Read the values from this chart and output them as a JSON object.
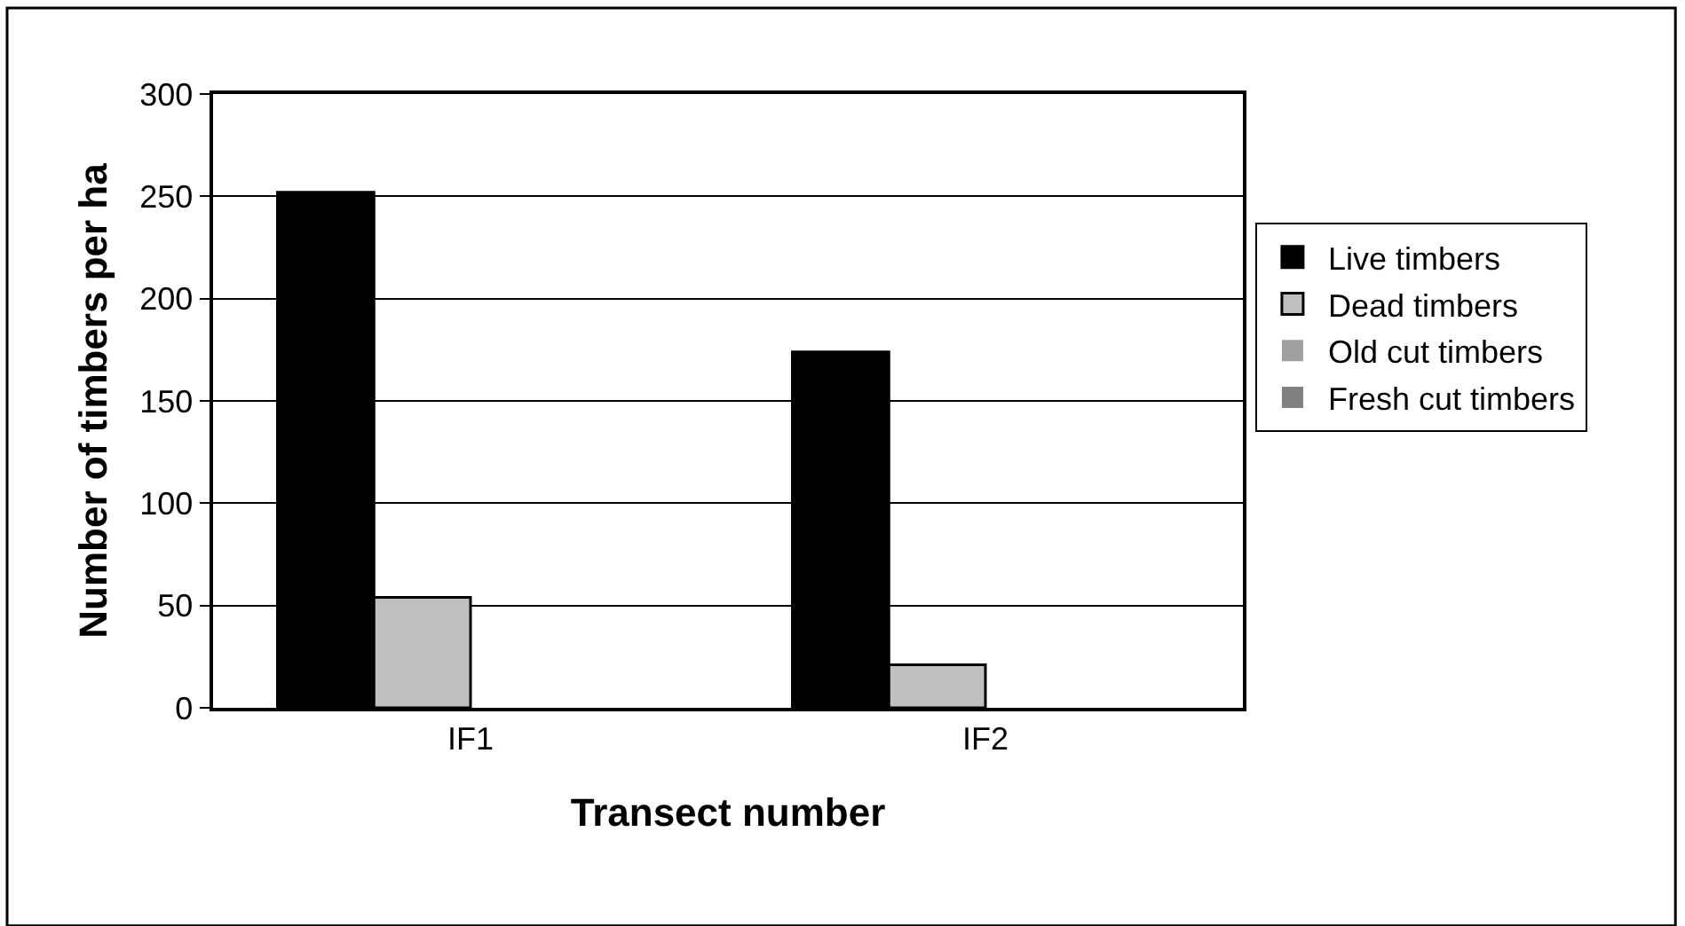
{
  "chart_data": {
    "type": "bar",
    "xlabel": "Transect number",
    "ylabel": "Number of timbers per ha",
    "categories": [
      "IF1",
      "IF2"
    ],
    "series": [
      {
        "name": "Live timbers",
        "color": "#000000",
        "values": [
          252,
          174
        ]
      },
      {
        "name": "Dead timbers",
        "color": "#c0c0c0",
        "values": [
          54,
          21
        ]
      },
      {
        "name": "Old cut timbers",
        "color": "#a0a0a0",
        "values": [
          0,
          0
        ]
      },
      {
        "name": "Fresh cut timbers",
        "color": "#808080",
        "values": [
          0,
          0
        ]
      }
    ],
    "ylim": [
      0,
      300
    ],
    "yticks": [
      0,
      50,
      100,
      150,
      200,
      250,
      300
    ],
    "grid": "y",
    "legend": "right"
  }
}
